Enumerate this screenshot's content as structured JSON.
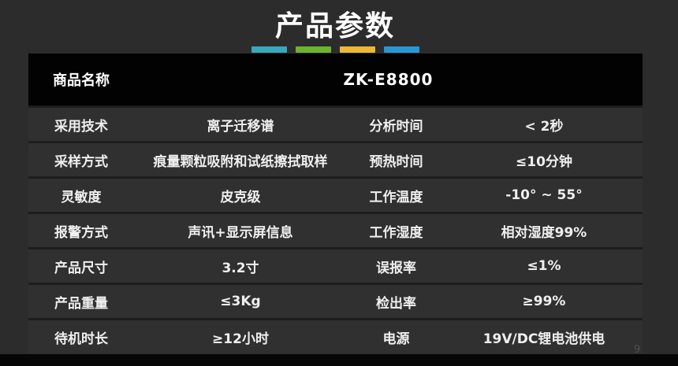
{
  "page": {
    "title": "产品参数",
    "page_number": "9",
    "accent_colors": [
      "#38a9bc",
      "#6cb32e",
      "#efb832",
      "#2996d5"
    ],
    "background_color": "#2c2c2c",
    "header_background_color": "#020202",
    "row_background_color": "#303030",
    "text_color": "#ffffff"
  },
  "table": {
    "header": {
      "label": "商品名称",
      "value": "ZK-E8800"
    },
    "rows": [
      {
        "label1": "采用技术",
        "value1": "离子迁移谱",
        "label2": "分析时间",
        "value2": "< 2秒"
      },
      {
        "label1": "采样方式",
        "value1": "痕量颗粒吸附和试纸擦拭取样",
        "label2": "预热时间",
        "value2": "≤10分钟"
      },
      {
        "label1": "灵敏度",
        "value1": "皮克级",
        "label2": "工作温度",
        "value2": "-10° ~ 55°"
      },
      {
        "label1": "报警方式",
        "value1": "声讯+显示屏信息",
        "label2": "工作湿度",
        "value2": "相对湿度99%"
      },
      {
        "label1": "产品尺寸",
        "value1": "3.2寸",
        "label2": "误报率",
        "value2": "≤1%"
      },
      {
        "label1": "产品重量",
        "value1": "≤3Kg",
        "label2": "检出率",
        "value2": "≥99%"
      },
      {
        "label1": "待机时长",
        "value1": "≥12小时",
        "label2": "电源",
        "value2": "19V/DC锂电池供电"
      }
    ]
  }
}
